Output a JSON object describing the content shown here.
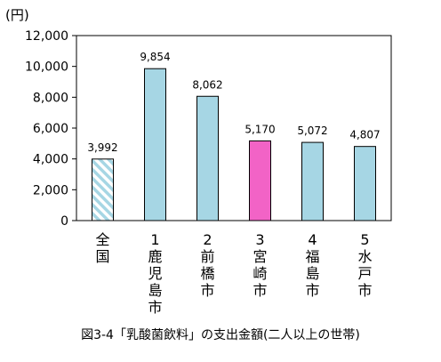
{
  "chart_data": {
    "type": "bar",
    "unit_label": "(円)",
    "categories": [
      "全国",
      "1鹿児島市",
      "2前橋市",
      "3宮崎市",
      "4福島市",
      "5水戸市"
    ],
    "category_label_lines": [
      [
        "全",
        "国"
      ],
      [
        "1",
        "鹿",
        "児",
        "島",
        "市"
      ],
      [
        "2",
        "前",
        "橋",
        "市"
      ],
      [
        "3",
        "宮",
        "崎",
        "市"
      ],
      [
        "4",
        "福",
        "島",
        "市"
      ],
      [
        "5",
        "水",
        "戸",
        "市"
      ]
    ],
    "values": [
      3992,
      9854,
      8062,
      5170,
      5072,
      4807
    ],
    "value_labels": [
      "3,992",
      "9,854",
      "8,062",
      "5,170",
      "5,072",
      "4,807"
    ],
    "ylim": [
      0,
      12000
    ],
    "yticks": [
      0,
      2000,
      4000,
      6000,
      8000,
      10000,
      12000
    ],
    "ytick_labels": [
      "0",
      "2,000",
      "4,000",
      "6,000",
      "8,000",
      "10,000",
      "12,000"
    ],
    "grid": false,
    "bar_styles": [
      "hatched",
      "solid",
      "solid",
      "highlight",
      "solid",
      "solid"
    ],
    "colors": {
      "bar": "#a6d6e4",
      "highlight": "#f263c6",
      "hatch": "#a6d6e4",
      "border": "#000000"
    }
  },
  "caption": "図3-4「乳酸菌飲料」の支出金額(二人以上の世帯)"
}
